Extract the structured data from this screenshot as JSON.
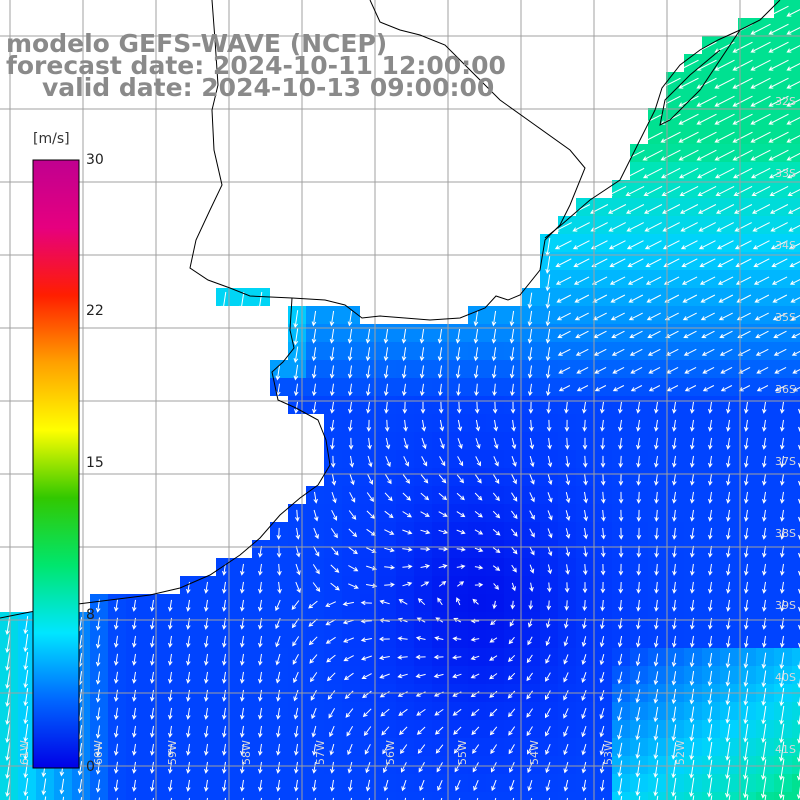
{
  "titles": {
    "model": "modelo GEFS-WAVE (NCEP)",
    "forecast": "forecast date: 2024-10-11 12:00:00",
    "valid": "valid date: 2024-10-13 09:00:00"
  },
  "colorbar": {
    "unit": "[m/s]",
    "ticks": [
      "30",
      "22",
      "15",
      "8",
      "0"
    ],
    "min": 0,
    "max": 30,
    "colors": [
      "#0000e6",
      "#0066ff",
      "#00e6ff",
      "#00e66e",
      "#32c800",
      "#ffff00",
      "#ffa000",
      "#ff1e00",
      "#e6007f",
      "#c00090"
    ]
  },
  "grid_labels": {
    "lat": [
      "32S",
      "33S",
      "34S",
      "35S",
      "36S",
      "37S",
      "38S",
      "39S",
      "40S",
      "41S"
    ],
    "lon": [
      "61W",
      "60W",
      "59W",
      "58W",
      "57W",
      "56W",
      "55W",
      "54W",
      "53W",
      "52W"
    ]
  },
  "colors": {
    "land": "#ffffff",
    "coast": "#000000",
    "grid": "#a0a0a0",
    "arrow": "#ffffff",
    "title": "#8a8a8a"
  }
}
